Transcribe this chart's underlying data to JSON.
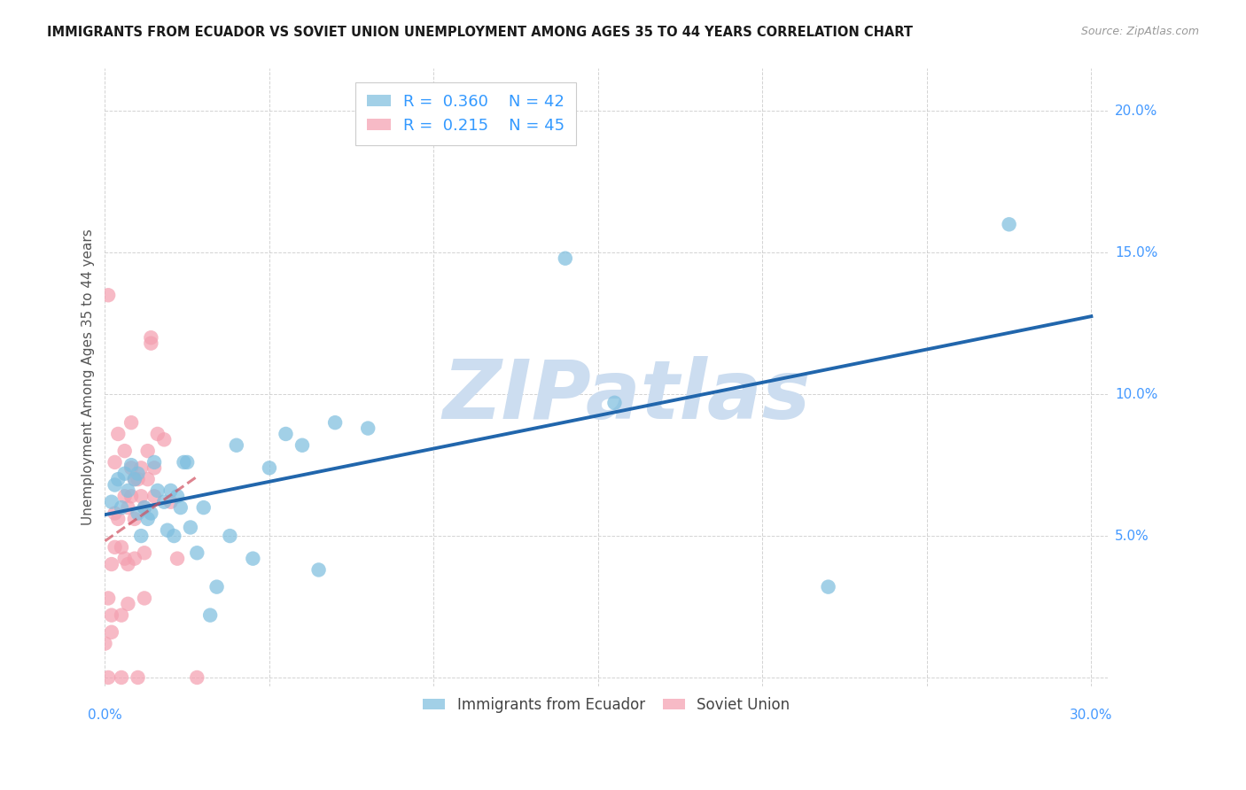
{
  "title": "IMMIGRANTS FROM ECUADOR VS SOVIET UNION UNEMPLOYMENT AMONG AGES 35 TO 44 YEARS CORRELATION CHART",
  "source": "Source: ZipAtlas.com",
  "ylabel": "Unemployment Among Ages 35 to 44 years",
  "xlim": [
    0.0,
    0.305
  ],
  "ylim": [
    -0.003,
    0.215
  ],
  "xticks": [
    0.0,
    0.05,
    0.1,
    0.15,
    0.2,
    0.25,
    0.3
  ],
  "yticks": [
    0.0,
    0.05,
    0.1,
    0.15,
    0.2
  ],
  "ytick_labels": [
    "",
    "5.0%",
    "10.0%",
    "15.0%",
    "20.0%"
  ],
  "ecuador_color": "#7fbfdf",
  "soviet_color": "#f4a0b0",
  "ecuador_r": 0.36,
  "ecuador_n": 42,
  "soviet_r": 0.215,
  "soviet_n": 45,
  "trendline_ecuador_color": "#2166ac",
  "trendline_soviet_color": "#d05060",
  "watermark": "ZIPatlas",
  "legend_label_ecuador": "Immigrants from Ecuador",
  "legend_label_soviet": "Soviet Union",
  "ecuador_x": [
    0.002,
    0.003,
    0.004,
    0.005,
    0.006,
    0.007,
    0.008,
    0.009,
    0.01,
    0.01,
    0.011,
    0.012,
    0.013,
    0.014,
    0.015,
    0.016,
    0.018,
    0.019,
    0.02,
    0.021,
    0.022,
    0.023,
    0.024,
    0.025,
    0.026,
    0.028,
    0.03,
    0.032,
    0.034,
    0.038,
    0.04,
    0.045,
    0.05,
    0.055,
    0.06,
    0.065,
    0.07,
    0.08,
    0.14,
    0.155,
    0.22,
    0.275
  ],
  "ecuador_y": [
    0.062,
    0.068,
    0.07,
    0.06,
    0.072,
    0.066,
    0.075,
    0.07,
    0.072,
    0.058,
    0.05,
    0.06,
    0.056,
    0.058,
    0.076,
    0.066,
    0.062,
    0.052,
    0.066,
    0.05,
    0.064,
    0.06,
    0.076,
    0.076,
    0.053,
    0.044,
    0.06,
    0.022,
    0.032,
    0.05,
    0.082,
    0.042,
    0.074,
    0.086,
    0.082,
    0.038,
    0.09,
    0.088,
    0.148,
    0.097,
    0.032,
    0.16
  ],
  "soviet_x": [
    0.0,
    0.001,
    0.001,
    0.001,
    0.002,
    0.002,
    0.002,
    0.003,
    0.003,
    0.003,
    0.004,
    0.004,
    0.005,
    0.005,
    0.005,
    0.006,
    0.006,
    0.006,
    0.007,
    0.007,
    0.007,
    0.008,
    0.008,
    0.008,
    0.009,
    0.009,
    0.009,
    0.01,
    0.01,
    0.011,
    0.011,
    0.012,
    0.012,
    0.012,
    0.013,
    0.013,
    0.014,
    0.014,
    0.015,
    0.015,
    0.016,
    0.018,
    0.02,
    0.022,
    0.028
  ],
  "soviet_y": [
    0.012,
    0.0,
    0.028,
    0.135,
    0.04,
    0.022,
    0.016,
    0.076,
    0.046,
    0.058,
    0.086,
    0.056,
    0.0,
    0.046,
    0.022,
    0.064,
    0.042,
    0.08,
    0.06,
    0.04,
    0.026,
    0.074,
    0.064,
    0.09,
    0.07,
    0.056,
    0.042,
    0.0,
    0.07,
    0.064,
    0.074,
    0.06,
    0.044,
    0.028,
    0.07,
    0.08,
    0.12,
    0.118,
    0.064,
    0.074,
    0.086,
    0.084,
    0.062,
    0.042,
    0.0
  ]
}
